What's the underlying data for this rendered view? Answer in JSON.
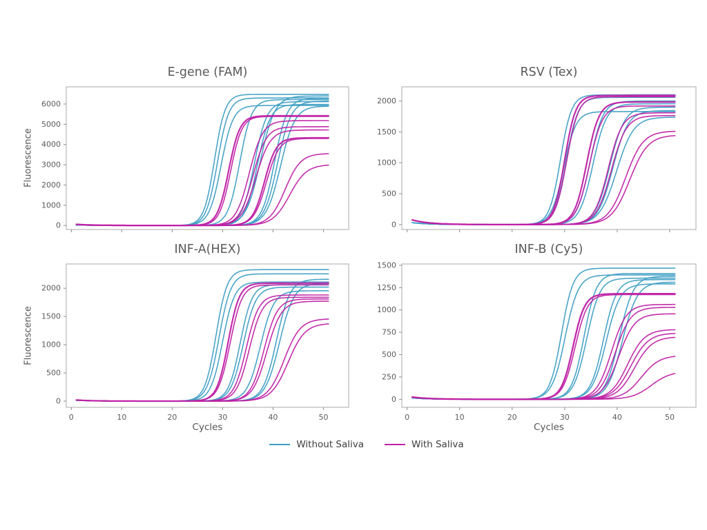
{
  "figure": {
    "background": "#ffffff"
  },
  "colors": {
    "without_saliva": "#3f9fc4",
    "with_saliva": "#bf21a5",
    "spine": "#a9a9a9",
    "tick": "#8a8a8a",
    "tick_label": "#5a5a5a",
    "title": "#595959",
    "axis_label": "#555555",
    "legend_label": "#3d3d3d"
  },
  "legend": {
    "items": [
      {
        "label": "Without Saliva",
        "color_key": "without_saliva"
      },
      {
        "label": "With Saliva",
        "color_key": "with_saliva"
      }
    ]
  },
  "chart_data": [
    {
      "id": "e-gene-fam",
      "type": "line",
      "title": "E-gene (FAM)",
      "xlabel": "",
      "ylabel": "Fluorescence",
      "xlim": [
        -1,
        55
      ],
      "ylim": [
        -200,
        6850
      ],
      "xticks": [
        0,
        10,
        20,
        30,
        40,
        50
      ],
      "yticks": [
        0,
        1000,
        2000,
        3000,
        4000,
        5000,
        6000
      ],
      "show_xtick_labels": false,
      "x_range": [
        1,
        51
      ],
      "series": [
        {
          "name": "Without Saliva",
          "color_key": "without_saliva",
          "start_bump": 25,
          "curves": [
            {
              "mid": 28.4,
              "plateau": 6480,
              "rate": 0.95
            },
            {
              "mid": 29.0,
              "plateau": 6300,
              "rate": 0.9
            },
            {
              "mid": 29.7,
              "plateau": 5930,
              "rate": 0.85
            },
            {
              "mid": 33.4,
              "plateau": 6220,
              "rate": 0.85
            },
            {
              "mid": 36.3,
              "plateau": 6120,
              "rate": 0.8
            },
            {
              "mid": 36.9,
              "plateau": 5980,
              "rate": 0.8
            },
            {
              "mid": 37.5,
              "plateau": 6400,
              "rate": 0.7
            },
            {
              "mid": 40.3,
              "plateau": 6280,
              "rate": 0.8
            },
            {
              "mid": 40.9,
              "plateau": 6150,
              "rate": 0.75
            },
            {
              "mid": 41.5,
              "plateau": 5900,
              "rate": 0.7
            }
          ]
        },
        {
          "name": "With Saliva",
          "color_key": "with_saliva",
          "start_bump": 55,
          "curves": [
            {
              "mid": 31.2,
              "plateau": 5420,
              "rate": 0.9,
              "width": 2.2
            },
            {
              "mid": 31.6,
              "plateau": 5390,
              "rate": 0.9
            },
            {
              "mid": 35.3,
              "plateau": 5180,
              "rate": 0.75
            },
            {
              "mid": 36.0,
              "plateau": 4880,
              "rate": 0.75
            },
            {
              "mid": 36.6,
              "plateau": 4720,
              "rate": 0.7
            },
            {
              "mid": 38.3,
              "plateau": 4330,
              "rate": 0.85,
              "width": 2.2
            },
            {
              "mid": 38.7,
              "plateau": 4300,
              "rate": 0.8
            },
            {
              "mid": 42.4,
              "plateau": 3560,
              "rate": 0.65
            },
            {
              "mid": 43.3,
              "plateau": 3010,
              "rate": 0.6
            }
          ]
        }
      ]
    },
    {
      "id": "rsv-tex",
      "type": "line",
      "title": "RSV (Tex)",
      "xlabel": "",
      "ylabel": "",
      "xlim": [
        -1,
        55
      ],
      "ylim": [
        -80,
        2230
      ],
      "xticks": [
        0,
        10,
        20,
        30,
        40,
        50
      ],
      "yticks": [
        0,
        500,
        1000,
        1500,
        2000
      ],
      "show_xtick_labels": false,
      "x_range": [
        1,
        51
      ],
      "series": [
        {
          "name": "Without Saliva",
          "color_key": "without_saliva",
          "start_bump": 30,
          "curves": [
            {
              "mid": 29.2,
              "plateau": 2100,
              "rate": 0.95
            },
            {
              "mid": 29.8,
              "plateau": 1830,
              "rate": 0.85
            },
            {
              "mid": 30.3,
              "plateau": 2060,
              "rate": 0.9
            },
            {
              "mid": 34.8,
              "plateau": 2000,
              "rate": 0.8
            },
            {
              "mid": 35.4,
              "plateau": 1955,
              "rate": 0.78
            },
            {
              "mid": 38.6,
              "plateau": 1900,
              "rate": 0.72
            },
            {
              "mid": 39.2,
              "plateau": 1845,
              "rate": 0.7
            },
            {
              "mid": 39.9,
              "plateau": 1740,
              "rate": 0.62
            }
          ]
        },
        {
          "name": "With Saliva",
          "color_key": "with_saliva",
          "start_bump": 75,
          "curves": [
            {
              "mid": 30.0,
              "plateau": 2090,
              "rate": 0.95,
              "width": 2.2
            },
            {
              "mid": 30.4,
              "plateau": 2070,
              "rate": 0.9
            },
            {
              "mid": 34.2,
              "plateau": 1985,
              "rate": 0.85,
              "width": 2.2
            },
            {
              "mid": 34.7,
              "plateau": 1920,
              "rate": 0.8
            },
            {
              "mid": 38.3,
              "plateau": 1810,
              "rate": 0.75
            },
            {
              "mid": 38.9,
              "plateau": 1765,
              "rate": 0.7
            },
            {
              "mid": 41.6,
              "plateau": 1515,
              "rate": 0.6
            },
            {
              "mid": 42.4,
              "plateau": 1450,
              "rate": 0.58
            }
          ]
        }
      ]
    },
    {
      "id": "inf-a-hex",
      "type": "line",
      "title": "INF-A(HEX)",
      "xlabel": "Cycles",
      "ylabel": "Fluorescence",
      "xlim": [
        -1,
        55
      ],
      "ylim": [
        -110,
        2430
      ],
      "xticks": [
        0,
        10,
        20,
        30,
        40,
        50
      ],
      "yticks": [
        0,
        500,
        1000,
        1500,
        2000
      ],
      "show_xtick_labels": true,
      "x_range": [
        1,
        51
      ],
      "series": [
        {
          "name": "Without Saliva",
          "color_key": "without_saliva",
          "start_bump": 15,
          "curves": [
            {
              "mid": 28.7,
              "plateau": 2330,
              "rate": 0.9
            },
            {
              "mid": 29.3,
              "plateau": 2255,
              "rate": 0.85
            },
            {
              "mid": 30.0,
              "plateau": 2110,
              "rate": 0.85
            },
            {
              "mid": 33.5,
              "plateau": 2065,
              "rate": 0.85
            },
            {
              "mid": 34.1,
              "plateau": 2020,
              "rate": 0.8
            },
            {
              "mid": 37.5,
              "plateau": 1955,
              "rate": 0.75
            },
            {
              "mid": 40.7,
              "plateau": 2160,
              "rate": 0.75
            },
            {
              "mid": 41.3,
              "plateau": 2090,
              "rate": 0.7
            }
          ]
        },
        {
          "name": "With Saliva",
          "color_key": "with_saliva",
          "start_bump": 20,
          "curves": [
            {
              "mid": 31.1,
              "plateau": 2090,
              "rate": 0.9,
              "width": 2.2
            },
            {
              "mid": 31.5,
              "plateau": 2060,
              "rate": 0.85
            },
            {
              "mid": 34.7,
              "plateau": 1880,
              "rate": 0.8
            },
            {
              "mid": 35.3,
              "plateau": 1840,
              "rate": 0.78
            },
            {
              "mid": 38.2,
              "plateau": 1810,
              "rate": 0.75
            },
            {
              "mid": 38.8,
              "plateau": 1770,
              "rate": 0.7
            },
            {
              "mid": 42.2,
              "plateau": 1460,
              "rate": 0.62
            },
            {
              "mid": 43.0,
              "plateau": 1380,
              "rate": 0.6
            }
          ]
        }
      ]
    },
    {
      "id": "inf-b-cy5",
      "type": "line",
      "title": "INF-B (Cy5)",
      "xlabel": "Cycles",
      "ylabel": "",
      "xlim": [
        -1,
        55
      ],
      "ylim": [
        -90,
        1515
      ],
      "xticks": [
        0,
        10,
        20,
        30,
        40,
        50
      ],
      "yticks": [
        0,
        250,
        500,
        750,
        1000,
        1250,
        1500
      ],
      "show_xtick_labels": true,
      "x_range": [
        1,
        51
      ],
      "series": [
        {
          "name": "Without Saliva",
          "color_key": "without_saliva",
          "start_bump": 15,
          "curves": [
            {
              "mid": 29.4,
              "plateau": 1468,
              "rate": 0.9
            },
            {
              "mid": 30.1,
              "plateau": 1392,
              "rate": 0.8
            },
            {
              "mid": 33.7,
              "plateau": 1408,
              "rate": 0.85
            },
            {
              "mid": 34.2,
              "plateau": 1356,
              "rate": 0.8
            },
            {
              "mid": 37.4,
              "plateau": 1340,
              "rate": 0.8
            },
            {
              "mid": 37.9,
              "plateau": 1292,
              "rate": 0.75
            },
            {
              "mid": 40.4,
              "plateau": 1378,
              "rate": 0.75
            },
            {
              "mid": 41.0,
              "plateau": 1312,
              "rate": 0.7
            }
          ]
        },
        {
          "name": "With Saliva",
          "color_key": "with_saliva",
          "start_bump": 25,
          "curves": [
            {
              "mid": 31.6,
              "plateau": 1182,
              "rate": 0.9,
              "width": 2.4
            },
            {
              "mid": 32.0,
              "plateau": 1172,
              "rate": 0.85
            },
            {
              "mid": 38.9,
              "plateau": 1062,
              "rate": 0.7
            },
            {
              "mid": 39.6,
              "plateau": 1030,
              "rate": 0.68
            },
            {
              "mid": 40.3,
              "plateau": 958,
              "rate": 0.66
            },
            {
              "mid": 42.0,
              "plateau": 782,
              "rate": 0.62
            },
            {
              "mid": 42.6,
              "plateau": 742,
              "rate": 0.6
            },
            {
              "mid": 43.3,
              "plateau": 700,
              "rate": 0.6
            },
            {
              "mid": 44.6,
              "plateau": 492,
              "rate": 0.58
            },
            {
              "mid": 46.5,
              "plateau": 312,
              "rate": 0.55
            }
          ]
        }
      ]
    }
  ]
}
